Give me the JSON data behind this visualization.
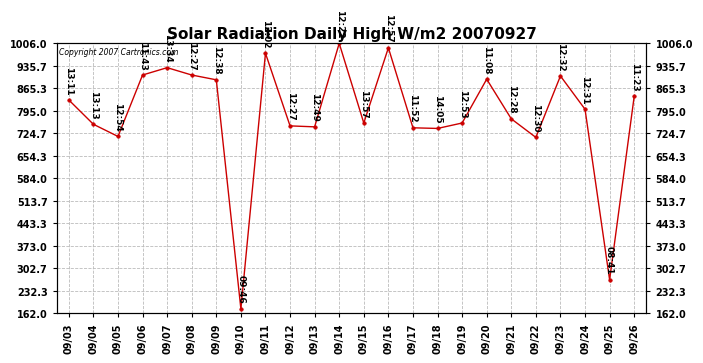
{
  "title": "Solar Radiation Daily High W/m2 20070927",
  "copyright": "Copyright 2007 Cartronics.com",
  "dates": [
    "09/03",
    "09/04",
    "09/05",
    "09/06",
    "09/07",
    "09/08",
    "09/09",
    "09/10",
    "09/11",
    "09/12",
    "09/13",
    "09/14",
    "09/15",
    "09/16",
    "09/17",
    "09/18",
    "09/19",
    "09/20",
    "09/21",
    "09/22",
    "09/23",
    "09/24",
    "09/25",
    "09/26"
  ],
  "values": [
    829,
    753,
    715,
    907,
    930,
    907,
    892,
    176,
    975,
    748,
    745,
    1006,
    757,
    992,
    742,
    740,
    757,
    894,
    770,
    712,
    904,
    800,
    267,
    840
  ],
  "labels": [
    "13:11",
    "13:13",
    "12:54",
    "11:43",
    "13:34",
    "12:27",
    "12:38",
    "09:46",
    "12:02",
    "12:27",
    "12:49",
    "12:22",
    "13:57",
    "12:57",
    "11:52",
    "14:05",
    "12:53",
    "11:08",
    "12:28",
    "12:30",
    "12:32",
    "12:31",
    "08:41",
    "11:23"
  ],
  "ymin": 162.0,
  "ymax": 1006.0,
  "ytick_labels": [
    "162.0",
    "232.3",
    "302.7",
    "373.0",
    "443.3",
    "513.7",
    "584.0",
    "654.3",
    "724.7",
    "795.0",
    "865.3",
    "935.7",
    "1006.0"
  ],
  "ytick_values": [
    162.0,
    232.3,
    302.7,
    373.0,
    443.3,
    513.7,
    584.0,
    654.3,
    724.7,
    795.0,
    865.3,
    935.7,
    1006.0
  ],
  "line_color": "#cc0000",
  "marker_color": "#cc0000",
  "bg_color": "#ffffff",
  "grid_color": "#bbbbbb",
  "title_fontsize": 11,
  "tick_fontsize": 7,
  "label_fontsize": 6.5
}
